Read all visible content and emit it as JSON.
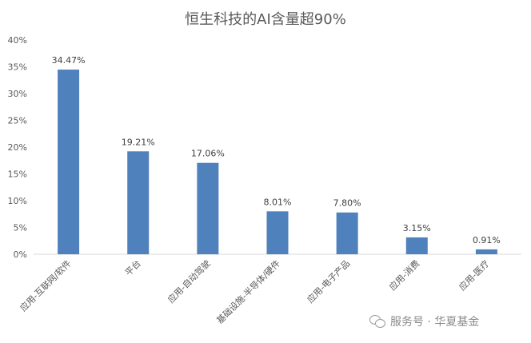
{
  "chart_data": {
    "type": "bar",
    "title": "恒生科技的AI含量超90%",
    "categories": [
      "应用-互联网/软件",
      "平台",
      "应用-自动驾驶",
      "基础设施-半导体/硬件",
      "应用-电子产品",
      "应用-消费",
      "应用-医疗"
    ],
    "values": [
      34.47,
      19.21,
      17.06,
      8.01,
      7.8,
      3.15,
      0.91
    ],
    "value_labels": [
      "34.47%",
      "19.21%",
      "17.06%",
      "8.01%",
      "7.80%",
      "3.15%",
      "0.91%"
    ],
    "yticks": [
      "0%",
      "5%",
      "10%",
      "15%",
      "20%",
      "25%",
      "30%",
      "35%",
      "40%"
    ],
    "ylim": [
      0,
      40
    ],
    "bar_color": "#4f81bd",
    "grid": false,
    "legend": "none"
  },
  "watermark": {
    "icon": "wechat-icon",
    "text": "服务号 · 华夏基金"
  }
}
